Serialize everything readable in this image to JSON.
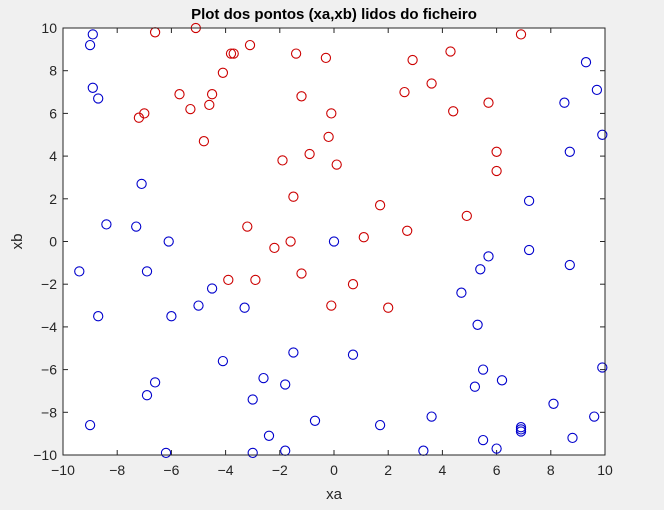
{
  "chart_data": {
    "type": "scatter",
    "title": "Plot dos pontos (xa,xb) lidos do ficheiro",
    "xlabel": "xa",
    "ylabel": "xb",
    "xlim": [
      -10,
      10
    ],
    "ylim": [
      -10,
      10
    ],
    "xticks": [
      -10,
      -8,
      -6,
      -4,
      -2,
      0,
      2,
      4,
      6,
      8,
      10
    ],
    "yticks": [
      -10,
      -8,
      -6,
      -4,
      -2,
      0,
      2,
      4,
      6,
      8,
      10
    ],
    "grid": false,
    "marker": "circle",
    "colors": {
      "axes_background": "#ffffff",
      "figure_background": "#f0f0f0",
      "axis": "#262626"
    },
    "series": [
      {
        "color": "#cc0000",
        "points": [
          [
            -6.6,
            9.8
          ],
          [
            -5.1,
            10.0
          ],
          [
            -3.7,
            8.8
          ],
          [
            -3.8,
            8.8
          ],
          [
            -3.1,
            9.2
          ],
          [
            -4.1,
            7.9
          ],
          [
            -4.5,
            6.9
          ],
          [
            -5.7,
            6.9
          ],
          [
            -4.6,
            6.4
          ],
          [
            -5.3,
            6.2
          ],
          [
            -7.0,
            6.0
          ],
          [
            -7.2,
            5.8
          ],
          [
            -4.8,
            4.7
          ],
          [
            -1.4,
            8.8
          ],
          [
            -0.3,
            8.6
          ],
          [
            -1.2,
            6.8
          ],
          [
            -0.1,
            6.0
          ],
          [
            -0.2,
            4.9
          ],
          [
            -0.9,
            4.1
          ],
          [
            0.1,
            3.6
          ],
          [
            -1.9,
            3.8
          ],
          [
            -1.5,
            2.1
          ],
          [
            2.9,
            8.5
          ],
          [
            4.3,
            8.9
          ],
          [
            3.6,
            7.4
          ],
          [
            2.6,
            7.0
          ],
          [
            5.7,
            6.5
          ],
          [
            4.4,
            6.1
          ],
          [
            6.9,
            9.7
          ],
          [
            6.0,
            4.2
          ],
          [
            6.0,
            3.3
          ],
          [
            4.9,
            1.2
          ],
          [
            1.7,
            1.7
          ],
          [
            2.7,
            0.5
          ],
          [
            1.1,
            0.2
          ],
          [
            -3.2,
            0.7
          ],
          [
            -2.2,
            -0.3
          ],
          [
            -1.6,
            0.0
          ],
          [
            -1.2,
            -1.5
          ],
          [
            -3.9,
            -1.8
          ],
          [
            -2.9,
            -1.8
          ],
          [
            0.7,
            -2.0
          ],
          [
            -0.1,
            -3.0
          ],
          [
            2.0,
            -3.1
          ]
        ]
      },
      {
        "color": "#0000cc",
        "points": [
          [
            -8.9,
            9.7
          ],
          [
            -9.0,
            9.2
          ],
          [
            -8.9,
            7.2
          ],
          [
            -8.7,
            6.7
          ],
          [
            -7.1,
            2.7
          ],
          [
            -8.4,
            0.8
          ],
          [
            -7.3,
            0.7
          ],
          [
            -6.1,
            0.0
          ],
          [
            -9.4,
            -1.4
          ],
          [
            -6.9,
            -1.4
          ],
          [
            -8.7,
            -3.5
          ],
          [
            -6.0,
            -3.5
          ],
          [
            -4.5,
            -2.2
          ],
          [
            -5.0,
            -3.0
          ],
          [
            -3.3,
            -3.1
          ],
          [
            -4.1,
            -5.6
          ],
          [
            -1.5,
            -5.2
          ],
          [
            -2.6,
            -6.4
          ],
          [
            -1.8,
            -6.7
          ],
          [
            -6.6,
            -6.6
          ],
          [
            -6.9,
            -7.2
          ],
          [
            -3.0,
            -7.4
          ],
          [
            -0.7,
            -8.4
          ],
          [
            -2.4,
            -9.1
          ],
          [
            -9.0,
            -8.6
          ],
          [
            -6.2,
            -9.9
          ],
          [
            -3.0,
            -9.9
          ],
          [
            -1.8,
            -9.8
          ],
          [
            0.0,
            0.0
          ],
          [
            0.7,
            -5.3
          ],
          [
            1.7,
            -8.6
          ],
          [
            3.3,
            -9.8
          ],
          [
            3.6,
            -8.2
          ],
          [
            4.7,
            -2.4
          ],
          [
            5.3,
            -3.9
          ],
          [
            5.4,
            -1.3
          ],
          [
            5.7,
            -0.7
          ],
          [
            5.5,
            -6.0
          ],
          [
            5.2,
            -6.8
          ],
          [
            6.2,
            -6.5
          ],
          [
            5.5,
            -9.3
          ],
          [
            6.0,
            -9.7
          ],
          [
            6.9,
            -8.7
          ],
          [
            6.9,
            -8.8
          ],
          [
            6.9,
            -8.9
          ],
          [
            7.2,
            1.9
          ],
          [
            7.2,
            -0.4
          ],
          [
            8.5,
            6.5
          ],
          [
            8.7,
            4.2
          ],
          [
            9.3,
            8.4
          ],
          [
            9.7,
            7.1
          ],
          [
            9.9,
            5.0
          ],
          [
            8.7,
            -1.1
          ],
          [
            8.1,
            -7.6
          ],
          [
            8.8,
            -9.2
          ],
          [
            9.6,
            -8.2
          ],
          [
            9.9,
            -5.9
          ]
        ]
      }
    ]
  }
}
